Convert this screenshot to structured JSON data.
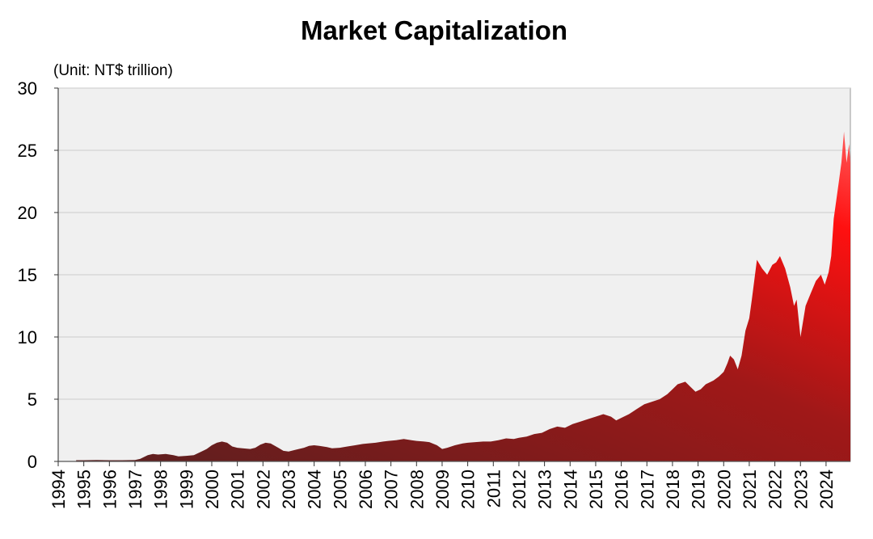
{
  "chart_data": {
    "type": "area",
    "title": "Market Capitalization",
    "unit_label": "(Unit: NT$ trillion)",
    "xlabel": "",
    "ylabel": "",
    "ylim": [
      0,
      30
    ],
    "xlim": [
      1994,
      2024.95
    ],
    "yticks": [
      "0",
      "5",
      "10",
      "15",
      "20",
      "25",
      "30"
    ],
    "xticks": [
      "1994",
      "1995",
      "1996",
      "1997",
      "1998",
      "1999",
      "2000",
      "2001",
      "2002",
      "2003",
      "2004",
      "2005",
      "2006",
      "2007",
      "2008",
      "2009",
      "2010",
      "2011",
      "2012",
      "2013",
      "2014",
      "2015",
      "2016",
      "2017",
      "2018",
      "2019",
      "2020",
      "2021",
      "2022",
      "2023",
      "2024"
    ],
    "grid": true,
    "legend": "none",
    "colors": {
      "fill_low": "#5a1f1f",
      "fill_mid": "#a01818",
      "fill_high": "#ff1010",
      "fill_top": "#ff5a5a",
      "plot_bg": "#f0f0f0",
      "grid": "#d4d4d4"
    },
    "series": [
      {
        "x": [
          1994.7,
          1995.0,
          1995.5,
          1996.0,
          1996.5,
          1997.0,
          1997.2,
          1997.5,
          1997.7,
          1997.9,
          1998.2,
          1998.5,
          1998.7,
          1999.0,
          1999.3,
          1999.6,
          1999.8,
          2000.0,
          2000.2,
          2000.4,
          2000.6,
          2000.8,
          2001.0,
          2001.2,
          2001.5,
          2001.7,
          2001.9,
          2002.1,
          2002.3,
          2002.6,
          2002.8,
          2003.0,
          2003.3,
          2003.6,
          2003.8,
          2004.0,
          2004.2,
          2004.5,
          2004.7,
          2005.0,
          2005.3,
          2005.6,
          2005.9,
          2006.1,
          2006.4,
          2006.7,
          2006.9,
          2007.2,
          2007.5,
          2007.8,
          2008.0,
          2008.3,
          2008.5,
          2008.8,
          2009.0,
          2009.2,
          2009.5,
          2009.8,
          2010.0,
          2010.3,
          2010.6,
          2010.9,
          2011.2,
          2011.5,
          2011.8,
          2012.0,
          2012.3,
          2012.6,
          2012.9,
          2013.2,
          2013.5,
          2013.8,
          2014.1,
          2014.4,
          2014.7,
          2015.0,
          2015.3,
          2015.6,
          2015.8,
          2016.0,
          2016.3,
          2016.6,
          2016.9,
          2017.2,
          2017.5,
          2017.8,
          2018.0,
          2018.2,
          2018.5,
          2018.7,
          2018.9,
          2019.1,
          2019.3,
          2019.6,
          2019.8,
          2020.0,
          2020.15,
          2020.25,
          2020.4,
          2020.55,
          2020.7,
          2020.85,
          2021.0,
          2021.1,
          2021.3,
          2021.5,
          2021.7,
          2021.9,
          2022.05,
          2022.2,
          2022.4,
          2022.6,
          2022.75,
          2022.85,
          2023.0,
          2023.2,
          2023.4,
          2023.6,
          2023.8,
          2023.95,
          2024.1,
          2024.2,
          2024.3,
          2024.4,
          2024.5,
          2024.6,
          2024.7,
          2024.8,
          2024.9,
          2024.95
        ],
        "y": [
          0.1,
          0.1,
          0.12,
          0.1,
          0.1,
          0.12,
          0.2,
          0.5,
          0.6,
          0.55,
          0.6,
          0.5,
          0.4,
          0.45,
          0.5,
          0.8,
          1.0,
          1.3,
          1.5,
          1.6,
          1.5,
          1.2,
          1.1,
          1.05,
          1.0,
          1.1,
          1.35,
          1.5,
          1.45,
          1.1,
          0.85,
          0.8,
          0.95,
          1.1,
          1.25,
          1.3,
          1.25,
          1.15,
          1.05,
          1.1,
          1.2,
          1.3,
          1.4,
          1.45,
          1.5,
          1.6,
          1.65,
          1.7,
          1.8,
          1.7,
          1.65,
          1.6,
          1.55,
          1.3,
          1.0,
          1.1,
          1.3,
          1.45,
          1.5,
          1.55,
          1.6,
          1.6,
          1.7,
          1.85,
          1.8,
          1.9,
          2.0,
          2.2,
          2.3,
          2.6,
          2.8,
          2.7,
          3.0,
          3.2,
          3.4,
          3.6,
          3.8,
          3.6,
          3.3,
          3.5,
          3.8,
          4.2,
          4.6,
          4.8,
          5.0,
          5.4,
          5.8,
          6.2,
          6.4,
          6.0,
          5.6,
          5.8,
          6.2,
          6.5,
          6.8,
          7.2,
          7.9,
          8.5,
          8.2,
          7.4,
          8.5,
          10.5,
          11.5,
          13.0,
          16.2,
          15.5,
          15.0,
          15.8,
          16.0,
          16.5,
          15.5,
          14.0,
          12.5,
          13.0,
          10.0,
          12.5,
          13.5,
          14.5,
          15.0,
          14.2,
          15.2,
          16.5,
          19.5,
          21.0,
          22.5,
          24.0,
          26.5,
          24.0,
          25.5,
          24.0
        ]
      }
    ]
  }
}
